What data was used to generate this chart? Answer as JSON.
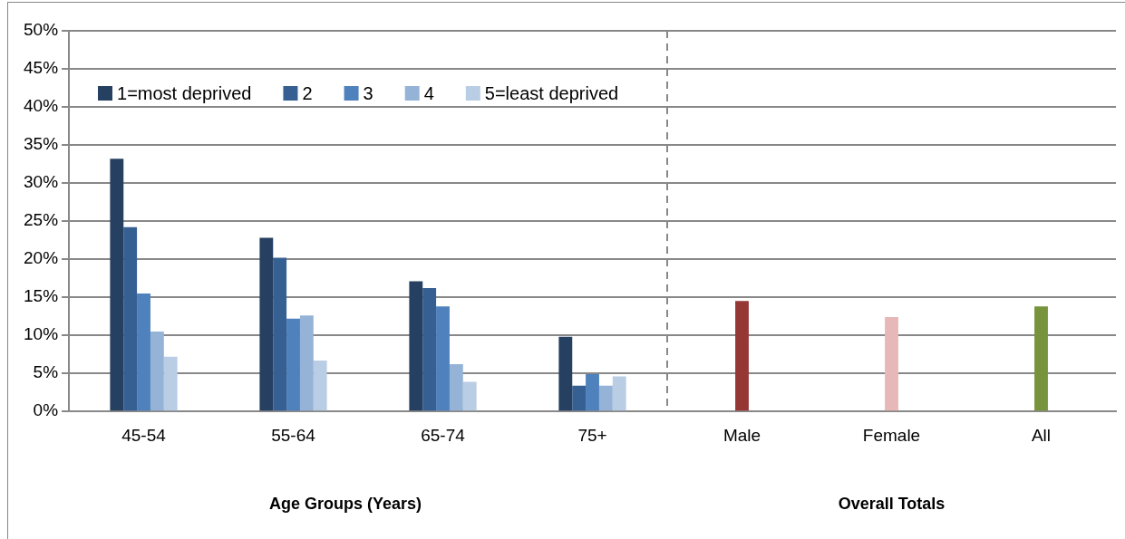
{
  "chart_data": {
    "type": "bar",
    "xlabel": "Age Groups (Years)",
    "categories": [
      "45-54",
      "55-64",
      "65-74",
      "75+",
      "Male",
      "Female",
      "All"
    ],
    "series": [
      {
        "name": "1=most deprived",
        "color": "#254061",
        "values": [
          33.2,
          22.8,
          17.1,
          9.8,
          null,
          null,
          null
        ]
      },
      {
        "name": "2",
        "color": "#366092",
        "values": [
          24.2,
          20.2,
          16.2,
          3.4,
          null,
          null,
          null
        ]
      },
      {
        "name": "3",
        "color": "#4f81bd",
        "values": [
          15.5,
          12.2,
          13.8,
          4.9,
          null,
          null,
          null
        ]
      },
      {
        "name": "4",
        "color": "#95b3d7",
        "values": [
          10.5,
          12.6,
          6.2,
          3.4,
          null,
          null,
          null
        ]
      },
      {
        "name": "5=least deprived",
        "color": "#b9cde5",
        "values": [
          7.2,
          6.7,
          3.9,
          4.6,
          null,
          null,
          null
        ]
      },
      {
        "colors": [
          "#953735",
          "#953735",
          "#953735",
          "#953735",
          "#953735",
          "#e6b9b8",
          "#77933c"
        ],
        "values": [
          null,
          null,
          null,
          null,
          14.5,
          12.4,
          13.8
        ]
      }
    ],
    "ylim": [
      0,
      50
    ],
    "yticks": [
      {
        "value": 0,
        "label": "0%"
      },
      {
        "value": 5,
        "label": "5%"
      },
      {
        "value": 10,
        "label": "10%"
      },
      {
        "value": 15,
        "label": "15%"
      },
      {
        "value": 20,
        "label": "20%"
      },
      {
        "value": 25,
        "label": "25%"
      },
      {
        "value": 30,
        "label": "30%"
      },
      {
        "value": 35,
        "label": "35%"
      },
      {
        "value": 40,
        "label": "40%"
      },
      {
        "value": 45,
        "label": "45%"
      },
      {
        "value": 50,
        "label": "50%"
      }
    ],
    "grid": "y",
    "legend": "top left",
    "annotations": [
      "Overall Totals"
    ]
  }
}
